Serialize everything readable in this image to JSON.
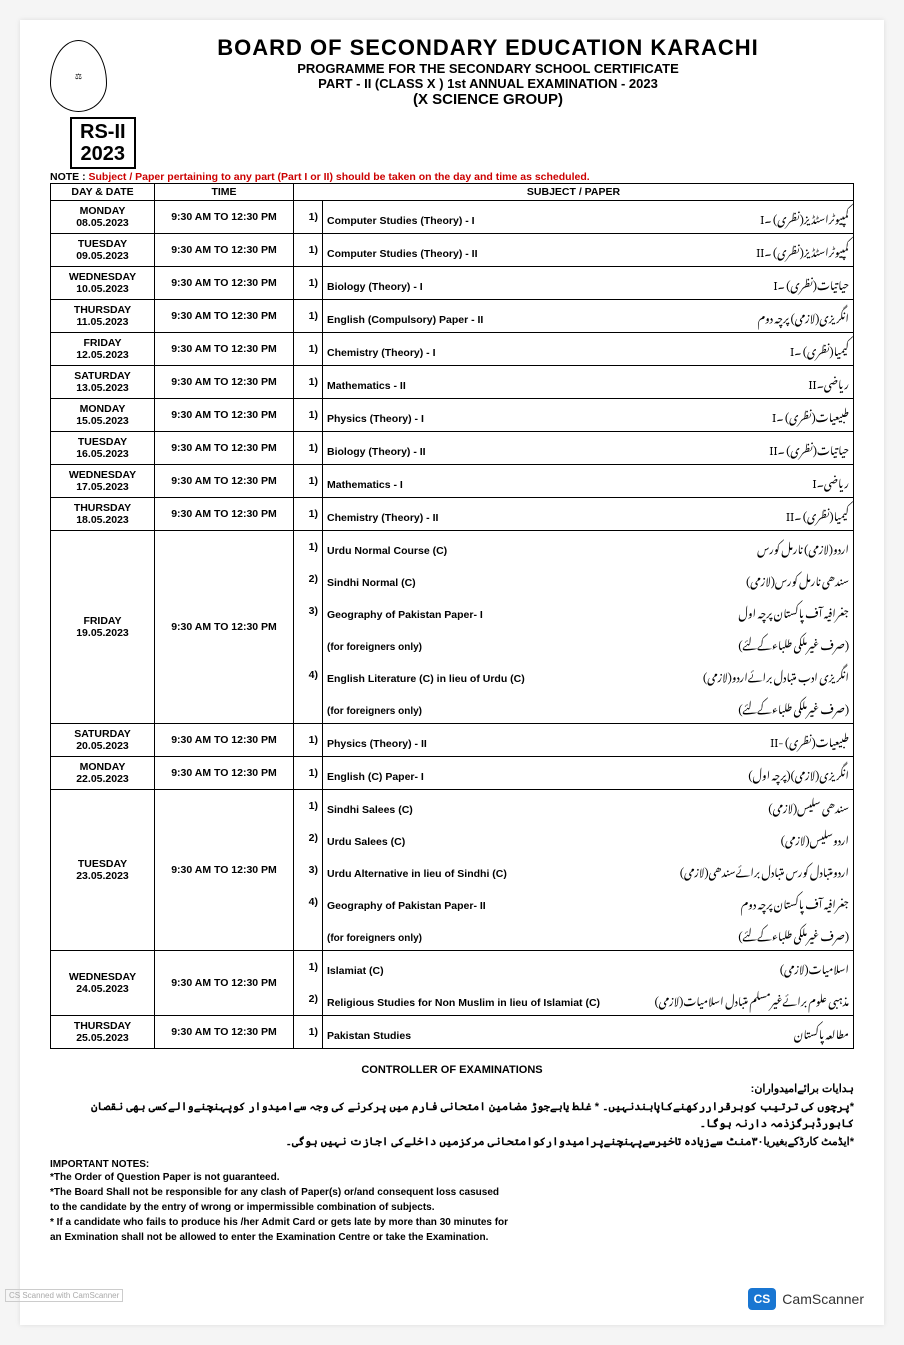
{
  "header": {
    "main_title": "BOARD OF SECONDARY EDUCATION KARACHI",
    "sub1": "PROGRAMME FOR THE SECONDARY SCHOOL CERTIFICATE",
    "sub2": "PART - II  (CLASS X ) 1st  ANNUAL EXAMINATION - 2023",
    "sub3": "(X SCIENCE GROUP)",
    "rs_line1": "RS-II",
    "rs_line2": "2023",
    "note_prefix": "NOTE : ",
    "note_red": "Subject / Paper pertaining to any part (Part I or II) should be taken on the day and time as scheduled."
  },
  "columns": {
    "day": "DAY & DATE",
    "time": "TIME",
    "subject": "SUBJECT / PAPER"
  },
  "rows": [
    {
      "day": "MONDAY",
      "date": "08.05.2023",
      "time": "9:30 AM TO 12:30 PM",
      "papers": [
        {
          "n": "1)",
          "en": "Computer Studies (Theory) - I",
          "ur": "کمپیوٹراسٹڈیز(نظری) ۔I"
        }
      ]
    },
    {
      "day": "TUESDAY",
      "date": "09.05.2023",
      "time": "9:30 AM TO 12:30 PM",
      "papers": [
        {
          "n": "1)",
          "en": "Computer Studies (Theory) - II",
          "ur": "کمپیوٹراسٹڈیز(نظری) ۔II"
        }
      ]
    },
    {
      "day": "WEDNESDAY",
      "date": "10.05.2023",
      "time": "9:30 AM TO 12:30 PM",
      "papers": [
        {
          "n": "1)",
          "en": "Biology (Theory) - I",
          "ur": "حیاتیات(نظری) ۔I"
        }
      ]
    },
    {
      "day": "THURSDAY",
      "date": "11.05.2023",
      "time": "9:30 AM TO 12:30 PM",
      "papers": [
        {
          "n": "1)",
          "en": "English (Compulsory) Paper - II",
          "ur": "انگریزی(لازمی) پرچہ دوم"
        }
      ]
    },
    {
      "day": "FRIDAY",
      "date": "12.05.2023",
      "time": "9:30 AM TO 12:30 PM",
      "papers": [
        {
          "n": "1)",
          "en": "Chemistry (Theory) - I",
          "ur": "کیمیا(نظری) ۔I"
        }
      ]
    },
    {
      "day": "SATURDAY",
      "date": "13.05.2023",
      "time": "9:30 AM TO 12:30 PM",
      "papers": [
        {
          "n": "1)",
          "en": "Mathematics - II",
          "ur": "ریاضی۔II"
        }
      ]
    },
    {
      "day": "MONDAY",
      "date": "15.05.2023",
      "time": "9:30 AM TO 12:30 PM",
      "papers": [
        {
          "n": "1)",
          "en": "Physics (Theory) - I",
          "ur": "طبیعیات(نظری) ۔I"
        }
      ]
    },
    {
      "day": "TUESDAY",
      "date": "16.05.2023",
      "time": "9:30 AM TO 12:30 PM",
      "papers": [
        {
          "n": "1)",
          "en": "Biology (Theory) - II",
          "ur": "حیاتیات(نظری) ۔II"
        }
      ]
    },
    {
      "day": "WEDNESDAY",
      "date": "17.05.2023",
      "time": "9:30 AM TO 12:30 PM",
      "papers": [
        {
          "n": "1)",
          "en": "Mathematics - I",
          "ur": "ریاضی۔I"
        }
      ]
    },
    {
      "day": "THURSDAY",
      "date": "18.05.2023",
      "time": "9:30 AM TO 12:30 PM",
      "papers": [
        {
          "n": "1)",
          "en": "Chemistry (Theory) - II",
          "ur": "کیمیا(نظری) ۔II"
        }
      ]
    },
    {
      "day": "FRIDAY",
      "date": "19.05.2023",
      "time": "9:30 AM TO 12:30 PM",
      "papers": [
        {
          "n": "1)",
          "en": "Urdu Normal Course (C)",
          "ur": "اردو(لازمی) نارمل کورس"
        },
        {
          "n": "2)",
          "en": "Sindhi Normal (C)",
          "ur": "سندھی نارمل کورس(لازمی)"
        },
        {
          "n": "3)",
          "en": "Geography of Pakistan Paper- I",
          "ur": "جغرافیہ آف پاکستان پرچہ اول"
        },
        {
          "n": "",
          "en": "(for foreigners only)",
          "ur": "(صرف غیرملکی طلباءکےلئے)"
        },
        {
          "n": "4)",
          "en": "English Literature (C) in lieu of Urdu (C)",
          "ur": "انگریزی ادب متبادل برائےاردو(لازمی)"
        },
        {
          "n": "",
          "en": "(for foreigners only)",
          "ur": "(صرف غیرملکی طلباءکےلئے)"
        }
      ]
    },
    {
      "day": "SATURDAY",
      "date": "20.05.2023",
      "time": "9:30 AM TO 12:30 PM",
      "papers": [
        {
          "n": "1)",
          "en": "Physics (Theory) - II",
          "ur": "طبیعیات(نظری) -II"
        }
      ]
    },
    {
      "day": "MONDAY",
      "date": "22.05.2023",
      "time": "9:30 AM TO 12:30 PM",
      "papers": [
        {
          "n": "1)",
          "en": "English (C) Paper- I",
          "ur": "انگریزی(لازمی)(پرچہ اول)"
        }
      ]
    },
    {
      "day": "TUESDAY",
      "date": "23.05.2023",
      "time": "9:30 AM TO 12:30 PM",
      "papers": [
        {
          "n": "1)",
          "en": "Sindhi Salees (C)",
          "ur": "سندھی سلیس(لازمی)"
        },
        {
          "n": "2)",
          "en": "Urdu Salees (C)",
          "ur": "اردوسلیس(لازمی)"
        },
        {
          "n": "3)",
          "en": "Urdu Alternative in lieu of Sindhi (C)",
          "ur": "اردومتبادل کورس متبادل برائےسندھی(لازمی)"
        },
        {
          "n": "4)",
          "en": "Geography of Pakistan Paper- II",
          "ur": "جغرافیہ آف پاکستان پرچہ دوم"
        },
        {
          "n": "",
          "en": "(for foreigners only)",
          "ur": "(صرف غیرملکی طلباءکےلئے)"
        }
      ]
    },
    {
      "day": "WEDNESDAY",
      "date": "24.05.2023",
      "time": "9:30 AM TO 12:30 PM",
      "papers": [
        {
          "n": "1)",
          "en": "Islamiat (C)",
          "ur": "اسلامیات(لازمی)"
        },
        {
          "n": "2)",
          "en": "Religious Studies for Non Muslim in lieu of Islamiat (C)",
          "ur": "مذہبی علوم برائےغیرمسلم متبادل اسلامیات(لازمی)"
        }
      ]
    },
    {
      "day": "THURSDAY",
      "date": "25.05.2023",
      "time": "9:30 AM TO 12:30 PM",
      "papers": [
        {
          "n": "1)",
          "en": "Pakistan Studies",
          "ur": "مطالعہ پاکستان"
        }
      ]
    }
  ],
  "footer": {
    "controller": "CONTROLLER OF EXAMINATIONS",
    "urdu_heading": "ہدایات برائےامیدواران:",
    "urdu_line1": "*پرچوں کی ترتیب کوبرقراررکھنےکاپابندنہیں۔ * غلط یابےجوڑ مضامین امتحانی فارم میں پرکرنے کی وجہ سےامیدوار کوپہنچنےوالےکسی بھی نقصان کابورڈہرگزذمہ دارنہ ہوگا۔",
    "urdu_line2": "*ایڈمٹ کارڈکےبغیریا۳۰منٹ سےزیادہ تاخیرسےپہنچنےپرامیدوارکوامتحانی مرکزمیں داخلےکی اجازت نہیں ہوگی۔",
    "imp_title": "IMPORTANT NOTES:",
    "imp1": "*The Order of Question Paper is not guaranteed.",
    "imp2": "*The Board Shall not be responsible for any clash of Paper(s) or/and consequent loss casused",
    "imp3": "to the candidate by the entry of wrong or impermissible combination of subjects.",
    "imp4": "* If a candidate who fails to produce his /her Admit Card or gets late by more than 30 minutes for",
    "imp5": "an Exmination shall not be allowed to enter the Examination Centre or take the Examination.",
    "camscanner": "CamScanner",
    "cs_logo": "CS",
    "scan_footer": "CS  Scanned with CamScanner"
  }
}
